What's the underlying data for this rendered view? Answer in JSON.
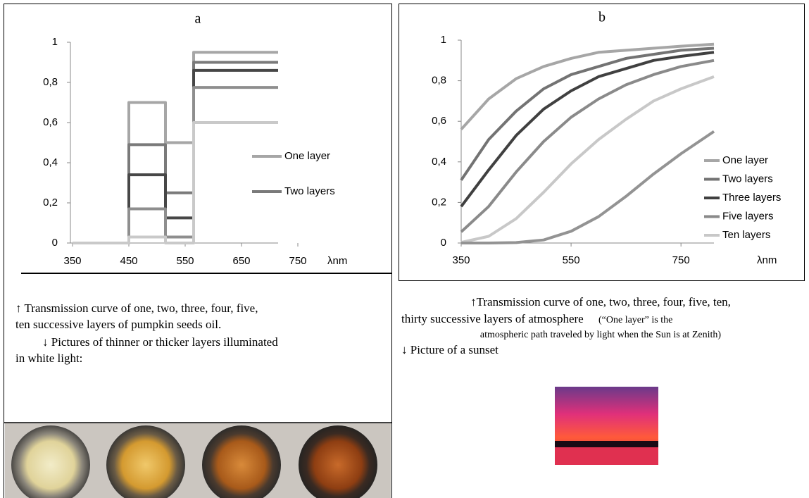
{
  "chart_data": [
    {
      "type": "line",
      "title": "a",
      "x_label": "λnm",
      "x": [
        350,
        450,
        450,
        515,
        515,
        565,
        565,
        715
      ],
      "xlim": [
        350,
        750
      ],
      "xticks": [
        350,
        450,
        550,
        650,
        750
      ],
      "ylim": [
        0,
        1
      ],
      "yticks": [
        0,
        {
          "value": 0.2,
          "label": "0,2"
        },
        {
          "value": 0.4,
          "label": "0,4"
        },
        {
          "value": 0.6,
          "label": "0,6"
        },
        {
          "value": 0.8,
          "label": "0,8"
        },
        1
      ],
      "legend": "right",
      "series": [
        {
          "name": "One layer",
          "color": "#a6a6a6",
          "values": [
            0,
            0,
            0.7,
            0.7,
            0.5,
            0.5,
            0.95,
            0.95
          ]
        },
        {
          "name": "Two layers",
          "color": "#7a7a7a",
          "values": [
            0,
            0,
            0.49,
            0.49,
            0.25,
            0.25,
            0.9,
            0.9
          ]
        },
        {
          "color": "#474747",
          "values": [
            0,
            0,
            0.34,
            0.34,
            0.125,
            0.125,
            0.86,
            0.86
          ]
        },
        {
          "color": "#8e8e8e",
          "values": [
            0,
            0,
            0.17,
            0.17,
            0.03,
            0.03,
            0.775,
            0.775
          ]
        },
        {
          "color": "#c9c9c9",
          "values": [
            0,
            0,
            0.03,
            0.03,
            0,
            0,
            0.6,
            0.6
          ]
        }
      ]
    },
    {
      "type": "line",
      "title": "b",
      "x_label": "λnm",
      "x": [
        350,
        400,
        450,
        500,
        550,
        600,
        650,
        700,
        750,
        810
      ],
      "xlim": [
        350,
        810
      ],
      "xticks": [
        350,
        550,
        750
      ],
      "ylim": [
        0,
        1
      ],
      "yticks": [
        0,
        {
          "value": 0.2,
          "label": "0,2"
        },
        {
          "value": 0.4,
          "label": "0,4"
        },
        {
          "value": 0.6,
          "label": "0,6"
        },
        {
          "value": 0.8,
          "label": "0,8"
        },
        1
      ],
      "legend": "right",
      "series": [
        {
          "name": "One layer",
          "color": "#a6a6a6",
          "values": [
            0.56,
            0.71,
            0.81,
            0.87,
            0.91,
            0.94,
            0.95,
            0.96,
            0.97,
            0.98
          ]
        },
        {
          "name": "Two layers",
          "color": "#737373",
          "values": [
            0.31,
            0.51,
            0.65,
            0.76,
            0.83,
            0.87,
            0.91,
            0.93,
            0.95,
            0.96
          ]
        },
        {
          "name": "Three layers",
          "color": "#404040",
          "values": [
            0.18,
            0.36,
            0.53,
            0.66,
            0.75,
            0.82,
            0.86,
            0.9,
            0.92,
            0.94
          ]
        },
        {
          "name": "Five layers",
          "color": "#8a8a8a",
          "values": [
            0.055,
            0.18,
            0.35,
            0.5,
            0.62,
            0.71,
            0.78,
            0.83,
            0.87,
            0.9
          ]
        },
        {
          "name": "Ten layers",
          "color": "#c8c8c8",
          "values": [
            0.003,
            0.033,
            0.12,
            0.25,
            0.39,
            0.51,
            0.61,
            0.7,
            0.76,
            0.82
          ]
        },
        {
          "color": "#939393",
          "values": [
            0,
            0,
            0.002,
            0.015,
            0.058,
            0.13,
            0.23,
            0.34,
            0.44,
            0.55
          ]
        }
      ]
    }
  ],
  "captions": {
    "a": [
      "↑ Transmission curve of one, two, three, four, five,",
      "ten successive layers of pumpkin seeds oil.",
      "↓ Pictures of thinner or thicker layers illuminated",
      "in white light:"
    ],
    "b": [
      "↑Transmission curve of one, two, three, four, five, ten,",
      "thirty successive layers of atmosphere",
      "(“One layer” is the",
      "atmospheric path traveled by light when the Sun is at Zenith)",
      "↓ Picture of a sunset"
    ]
  }
}
